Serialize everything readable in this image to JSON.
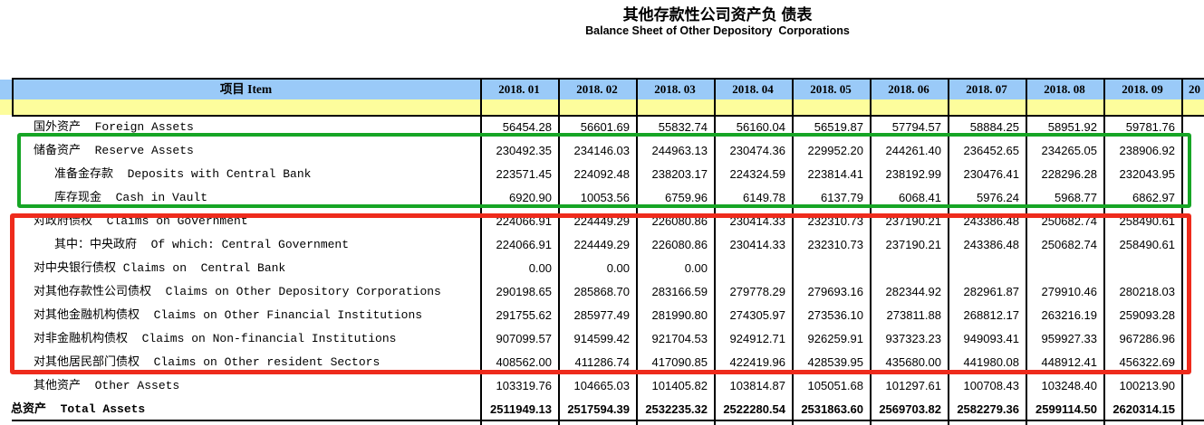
{
  "title": {
    "zh": "其他存款性公司资产负 债表",
    "en": "Balance Sheet of Other Depository  Corporations"
  },
  "colors": {
    "header_blue": "#9acaf8",
    "header_yellow": "#fdfd9c",
    "border_black": "#000000",
    "green_annotation": "#16a525",
    "red_annotation": "#ee2b1c"
  },
  "table": {
    "item_header": "项目 Item",
    "columns": [
      "2018. 01",
      "2018. 02",
      "2018. 03",
      "2018. 04",
      "2018. 05",
      "2018. 06",
      "2018. 07",
      "2018. 08",
      "2018. 09",
      "20"
    ],
    "rows": [
      {
        "label": "国外资产  Foreign Assets",
        "indent": 1,
        "bold": false,
        "values": [
          "56454.28",
          "56601.69",
          "55832.74",
          "56160.04",
          "56519.87",
          "57794.57",
          "58884.25",
          "58951.92",
          "59781.76",
          ""
        ]
      },
      {
        "label": "储备资产  Reserve Assets",
        "indent": 1,
        "bold": false,
        "values": [
          "230492.35",
          "234146.03",
          "244963.13",
          "230474.36",
          "229952.20",
          "244261.40",
          "236452.65",
          "234265.05",
          "238906.92",
          ""
        ]
      },
      {
        "label": "准备金存款  Deposits with Central Bank",
        "indent": 2,
        "bold": false,
        "values": [
          "223571.45",
          "224092.48",
          "238203.17",
          "224324.59",
          "223814.41",
          "238192.99",
          "230476.41",
          "228296.28",
          "232043.95",
          ""
        ]
      },
      {
        "label": "库存现金  Cash in Vault",
        "indent": 2,
        "bold": false,
        "values": [
          "6920.90",
          "10053.56",
          "6759.96",
          "6149.78",
          "6137.79",
          "6068.41",
          "5976.24",
          "5968.77",
          "6862.97",
          ""
        ]
      },
      {
        "label": "对政府债权  Claims on Government",
        "indent": 1,
        "bold": false,
        "values": [
          "224066.91",
          "224449.29",
          "226080.86",
          "230414.33",
          "232310.73",
          "237190.21",
          "243386.48",
          "250682.74",
          "258490.61",
          ""
        ]
      },
      {
        "label": "其中：中央政府  Of which: Central Government",
        "indent": 2,
        "bold": false,
        "values": [
          "224066.91",
          "224449.29",
          "226080.86",
          "230414.33",
          "232310.73",
          "237190.21",
          "243386.48",
          "250682.74",
          "258490.61",
          ""
        ]
      },
      {
        "label": "对中央银行债权 Claims on  Central Bank",
        "indent": 1,
        "bold": false,
        "values": [
          "0.00",
          "0.00",
          "0.00",
          "",
          "",
          "",
          "",
          "",
          "",
          ""
        ]
      },
      {
        "label": "对其他存款性公司债权  Claims on Other Depository Corporations",
        "indent": 1,
        "bold": false,
        "values": [
          "290198.65",
          "285868.70",
          "283166.59",
          "279778.29",
          "279693.16",
          "282344.92",
          "282961.87",
          "279910.46",
          "280218.03",
          ""
        ]
      },
      {
        "label": "对其他金融机构债权  Claims on Other Financial Institutions",
        "indent": 1,
        "bold": false,
        "values": [
          "291755.62",
          "285977.49",
          "281990.80",
          "274305.97",
          "273536.10",
          "273811.88",
          "268812.17",
          "263216.19",
          "259093.28",
          ""
        ]
      },
      {
        "label": "对非金融机构债权  Claims on Non-financial Institutions",
        "indent": 1,
        "bold": false,
        "values": [
          "907099.57",
          "914599.42",
          "921704.53",
          "924912.71",
          "926259.91",
          "937323.23",
          "949093.41",
          "959927.33",
          "967286.96",
          ""
        ]
      },
      {
        "label": "对其他居民部门债权  Claims on Other resident Sectors",
        "indent": 1,
        "bold": false,
        "values": [
          "408562.00",
          "411286.74",
          "417090.85",
          "422419.96",
          "428539.95",
          "435680.00",
          "441980.08",
          "448912.41",
          "456322.69",
          ""
        ]
      },
      {
        "label": "其他资产  Other Assets",
        "indent": 1,
        "bold": false,
        "values": [
          "103319.76",
          "104665.03",
          "101405.82",
          "103814.87",
          "105051.68",
          "101297.61",
          "100708.43",
          "103248.40",
          "100213.90",
          ""
        ]
      },
      {
        "label": "总资产  Total Assets",
        "indent": 0,
        "bold": true,
        "values": [
          "2511949.13",
          "2517594.39",
          "2532235.32",
          "2522280.54",
          "2531863.60",
          "2569703.82",
          "2582279.36",
          "2599114.50",
          "2620314.15",
          ""
        ]
      }
    ]
  },
  "annotations": {
    "green_box": "reserve-assets-group",
    "red_box": "claims-group"
  }
}
